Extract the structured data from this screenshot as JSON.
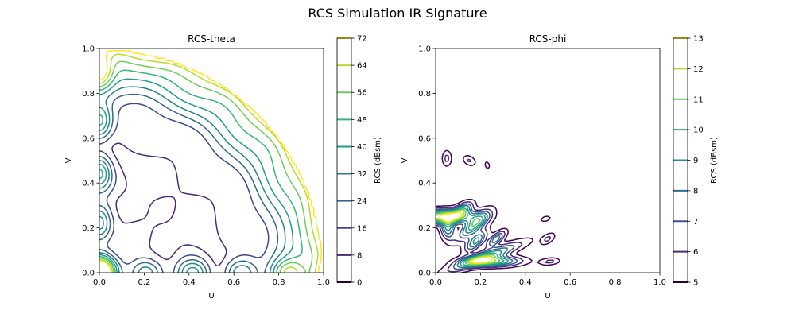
{
  "figure": {
    "title": "RCS Simulation IR Signature"
  },
  "chart_data": [
    {
      "type": "contour",
      "title": "RCS-theta",
      "xlabel": "U",
      "ylabel": "V",
      "xlim": [
        0,
        1
      ],
      "ylim": [
        0,
        1
      ],
      "xticks": [
        "0.0",
        "0.2",
        "0.4",
        "0.6",
        "0.8",
        "1.0"
      ],
      "yticks": [
        "0.0",
        "0.2",
        "0.4",
        "0.6",
        "0.8",
        "1.0"
      ],
      "colorbar": {
        "label": "RCS (dBsm)",
        "levels": [
          0,
          8,
          16,
          24,
          32,
          40,
          48,
          56,
          64,
          72
        ],
        "ticks": [
          "0",
          "8",
          "16",
          "24",
          "32",
          "40",
          "48",
          "56",
          "64",
          "72"
        ],
        "colors": [
          "#440154",
          "#482878",
          "#3e4989",
          "#31688e",
          "#26828e",
          "#1f9e89",
          "#35b779",
          "#6ece58",
          "#b5de2b",
          "#fde725"
        ]
      }
    },
    {
      "type": "contour",
      "title": "RCS-phi",
      "xlabel": "U",
      "ylabel": "V",
      "xlim": [
        0,
        1
      ],
      "ylim": [
        0,
        1
      ],
      "xticks": [
        "0.0",
        "0.2",
        "0.4",
        "0.6",
        "0.8",
        "1.0"
      ],
      "yticks": [
        "0.0",
        "0.2",
        "0.4",
        "0.6",
        "0.8",
        "1.0"
      ],
      "colorbar": {
        "label": "RCS (dBsm)",
        "levels": [
          5,
          6,
          7,
          8,
          9,
          10,
          11,
          12,
          13
        ],
        "ticks": [
          "5",
          "6",
          "7",
          "8",
          "9",
          "10",
          "11",
          "12",
          "13"
        ],
        "colors": [
          "#440154",
          "#472d7b",
          "#3b528b",
          "#2c728e",
          "#21918c",
          "#28ae80",
          "#5ec962",
          "#addc30",
          "#fde725"
        ]
      }
    }
  ]
}
